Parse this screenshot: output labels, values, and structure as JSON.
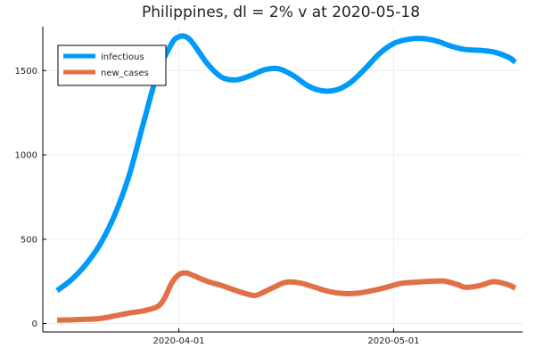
{
  "chart_data": {
    "type": "line",
    "title": "Philippines,  dl = 2% v at 2020-05-18",
    "xlabel": "",
    "ylabel": "",
    "x_type": "date",
    "xlim": [
      "2020-03-13",
      "2020-05-19"
    ],
    "ylim": [
      -50,
      1760
    ],
    "x_ticks": [
      {
        "value": "2020-04-01",
        "label": "2020-04-01"
      },
      {
        "value": "2020-05-01",
        "label": "2020-05-01"
      }
    ],
    "y_ticks": [
      {
        "value": 0,
        "label": "0"
      },
      {
        "value": 500,
        "label": "500"
      },
      {
        "value": 1000,
        "label": "1000"
      },
      {
        "value": 1500,
        "label": "1500"
      }
    ],
    "grid": true,
    "legend": {
      "position": "top-left",
      "entries": [
        "infectious",
        "new_cases"
      ]
    },
    "series": [
      {
        "name": "infectious",
        "color": "#009af9",
        "points": [
          [
            "2020-03-15",
            195
          ],
          [
            "2020-03-17",
            260
          ],
          [
            "2020-03-19",
            350
          ],
          [
            "2020-03-21",
            470
          ],
          [
            "2020-03-23",
            640
          ],
          [
            "2020-03-25",
            870
          ],
          [
            "2020-03-27",
            1180
          ],
          [
            "2020-03-29",
            1480
          ],
          [
            "2020-03-31",
            1660
          ],
          [
            "2020-04-01",
            1700
          ],
          [
            "2020-04-02",
            1700
          ],
          [
            "2020-04-03",
            1660
          ],
          [
            "2020-04-05",
            1540
          ],
          [
            "2020-04-07",
            1460
          ],
          [
            "2020-04-09",
            1445
          ],
          [
            "2020-04-11",
            1470
          ],
          [
            "2020-04-13",
            1505
          ],
          [
            "2020-04-15",
            1510
          ],
          [
            "2020-04-17",
            1470
          ],
          [
            "2020-04-19",
            1410
          ],
          [
            "2020-04-21",
            1380
          ],
          [
            "2020-04-23",
            1385
          ],
          [
            "2020-04-25",
            1430
          ],
          [
            "2020-04-27",
            1510
          ],
          [
            "2020-04-29",
            1600
          ],
          [
            "2020-05-01",
            1660
          ],
          [
            "2020-05-03",
            1685
          ],
          [
            "2020-05-05",
            1690
          ],
          [
            "2020-05-07",
            1675
          ],
          [
            "2020-05-09",
            1645
          ],
          [
            "2020-05-11",
            1625
          ],
          [
            "2020-05-13",
            1620
          ],
          [
            "2020-05-15",
            1610
          ],
          [
            "2020-05-17",
            1580
          ],
          [
            "2020-05-18",
            1550
          ]
        ]
      },
      {
        "name": "new_cases",
        "color": "#e26f46",
        "points": [
          [
            "2020-03-15",
            20
          ],
          [
            "2020-03-17",
            22
          ],
          [
            "2020-03-19",
            25
          ],
          [
            "2020-03-21",
            30
          ],
          [
            "2020-03-23",
            45
          ],
          [
            "2020-03-25",
            62
          ],
          [
            "2020-03-27",
            75
          ],
          [
            "2020-03-29",
            100
          ],
          [
            "2020-03-30",
            150
          ],
          [
            "2020-03-31",
            240
          ],
          [
            "2020-04-01",
            290
          ],
          [
            "2020-04-02",
            300
          ],
          [
            "2020-04-03",
            285
          ],
          [
            "2020-04-05",
            250
          ],
          [
            "2020-04-07",
            225
          ],
          [
            "2020-04-09",
            195
          ],
          [
            "2020-04-11",
            170
          ],
          [
            "2020-04-12",
            170
          ],
          [
            "2020-04-14",
            210
          ],
          [
            "2020-04-16",
            245
          ],
          [
            "2020-04-18",
            240
          ],
          [
            "2020-04-20",
            215
          ],
          [
            "2020-04-22",
            190
          ],
          [
            "2020-04-24",
            178
          ],
          [
            "2020-04-26",
            180
          ],
          [
            "2020-04-28",
            195
          ],
          [
            "2020-04-30",
            215
          ],
          [
            "2020-05-02",
            238
          ],
          [
            "2020-05-04",
            245
          ],
          [
            "2020-05-06",
            250
          ],
          [
            "2020-05-08",
            252
          ],
          [
            "2020-05-10",
            230
          ],
          [
            "2020-05-11",
            215
          ],
          [
            "2020-05-13",
            225
          ],
          [
            "2020-05-15",
            248
          ],
          [
            "2020-05-17",
            230
          ],
          [
            "2020-05-18",
            210
          ]
        ]
      }
    ]
  }
}
